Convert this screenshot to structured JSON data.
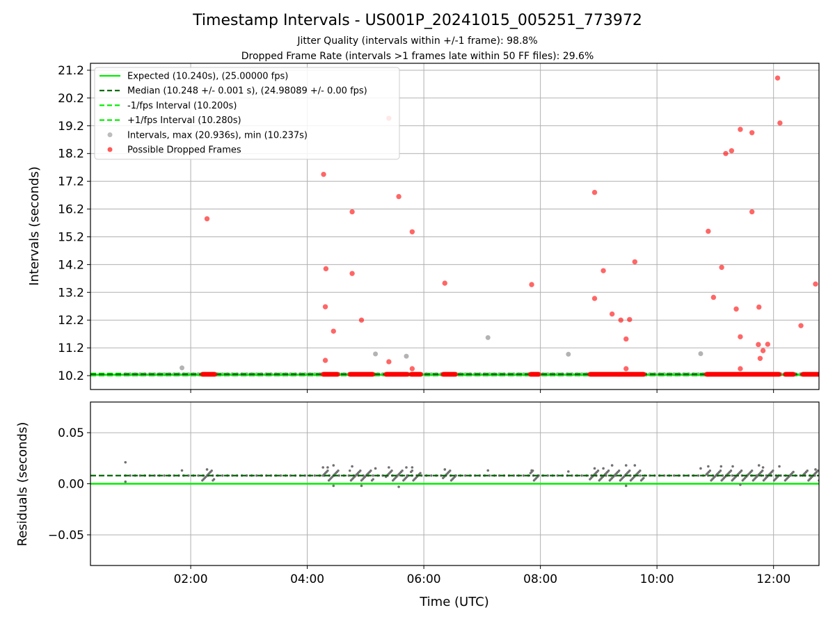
{
  "figure": {
    "title": "Timestamp Intervals - US001P_20241015_005251_773972",
    "subtitle1": "Jitter Quality (intervals within +/-1 frame): 98.8%",
    "subtitle2": "Dropped Frame Rate (intervals >1 frames late within 50 FF files): 29.6%"
  },
  "colors": {
    "expected": "#00ee00",
    "median": "#006400",
    "fps_bounds": "#00ee00",
    "intervals": "#999999",
    "dropped": "#ff0000",
    "residuals": "#707070",
    "grid": "#b0b0b0"
  },
  "chart_data": [
    {
      "type": "scatter",
      "xlabel": "",
      "ylabel": "Intervals (seconds)",
      "x_unit": "hours UTC",
      "xlim": [
        0.28,
        12.78
      ],
      "ylim": [
        9.7,
        21.45
      ],
      "y_ticks": [
        10.2,
        11.2,
        12.2,
        13.2,
        14.2,
        15.2,
        16.2,
        17.2,
        18.2,
        19.2,
        20.2,
        21.2
      ],
      "grid": true,
      "legend_position": "top-left",
      "legend": [
        "Expected (10.240s), (25.00000 fps)",
        "Median (10.248 +/- 0.001 s), (24.98089 +/- 0.00 fps)",
        "-1/fps Interval (10.200s)",
        "+1/fps Interval (10.280s)",
        "Intervals, max (20.936s), min (10.237s)",
        "Possible Dropped Frames"
      ],
      "lines": {
        "expected": 10.24,
        "median": 10.248,
        "minus_fps": 10.2,
        "plus_fps": 10.28
      },
      "intervals_x_range": [
        0.88,
        12.78
      ],
      "intervals_baseline": 10.248,
      "interval_outliers": [
        [
          1.85,
          10.48
        ],
        [
          5.17,
          10.98
        ],
        [
          5.7,
          10.9
        ],
        [
          7.1,
          11.57
        ],
        [
          8.48,
          10.97
        ],
        [
          10.75,
          10.99
        ]
      ],
      "dropped_clusters": [
        [
          2.2,
          2.42
        ],
        [
          4.27,
          4.53
        ],
        [
          4.73,
          5.13
        ],
        [
          5.35,
          5.73
        ],
        [
          5.78,
          5.95
        ],
        [
          6.33,
          6.55
        ],
        [
          7.83,
          7.98
        ],
        [
          8.85,
          9.78
        ],
        [
          10.85,
          12.1
        ],
        [
          12.2,
          12.35
        ],
        [
          12.5,
          12.78
        ]
      ],
      "dropped_points": [
        [
          2.28,
          15.85
        ],
        [
          4.28,
          17.45
        ],
        [
          4.32,
          14.05
        ],
        [
          4.31,
          12.68
        ],
        [
          4.31,
          10.75
        ],
        [
          4.45,
          11.8
        ],
        [
          4.77,
          16.1
        ],
        [
          4.77,
          13.88
        ],
        [
          4.93,
          12.2
        ],
        [
          5.4,
          19.47
        ],
        [
          5.4,
          10.7
        ],
        [
          5.57,
          16.65
        ],
        [
          5.8,
          15.38
        ],
        [
          5.8,
          10.45
        ],
        [
          6.36,
          13.53
        ],
        [
          7.85,
          13.48
        ],
        [
          8.93,
          16.8
        ],
        [
          8.93,
          12.98
        ],
        [
          9.08,
          13.98
        ],
        [
          9.23,
          12.42
        ],
        [
          9.38,
          12.2
        ],
        [
          9.47,
          11.52
        ],
        [
          9.47,
          10.45
        ],
        [
          9.53,
          12.22
        ],
        [
          9.62,
          14.3
        ],
        [
          10.88,
          15.4
        ],
        [
          10.97,
          13.02
        ],
        [
          11.11,
          14.1
        ],
        [
          11.18,
          18.2
        ],
        [
          11.28,
          18.3
        ],
        [
          11.36,
          12.6
        ],
        [
          11.43,
          19.07
        ],
        [
          11.43,
          11.6
        ],
        [
          11.43,
          10.45
        ],
        [
          11.63,
          18.95
        ],
        [
          11.63,
          16.1
        ],
        [
          11.75,
          12.67
        ],
        [
          11.74,
          11.32
        ],
        [
          11.77,
          10.82
        ],
        [
          11.82,
          11.1
        ],
        [
          11.9,
          11.33
        ],
        [
          12.07,
          20.92
        ],
        [
          12.11,
          19.3
        ],
        [
          12.47,
          12.0
        ],
        [
          12.72,
          13.5
        ]
      ]
    },
    {
      "type": "scatter",
      "xlabel": "Time (UTC)",
      "ylabel": "Residuals (seconds)",
      "x_ticks": [
        "02:00",
        "04:00",
        "06:00",
        "08:00",
        "10:00",
        "12:00"
      ],
      "x_tick_values": [
        2,
        4,
        6,
        8,
        10,
        12
      ],
      "y_ticks": [
        "0.05",
        "0.00",
        "−0.05"
      ],
      "y_tick_values": [
        0.05,
        0.0,
        -0.05
      ],
      "ylim": [
        -0.08,
        0.08
      ],
      "grid": true,
      "expected_residual": 0.0,
      "median_residual": 0.008,
      "residual_outliers": [
        [
          0.88,
          0.021
        ],
        [
          0.88,
          0.002
        ],
        [
          1.85,
          0.013
        ],
        [
          2.28,
          0.014
        ],
        [
          4.27,
          0.016
        ],
        [
          4.35,
          0.016
        ],
        [
          4.45,
          0.018
        ],
        [
          4.45,
          -0.002
        ],
        [
          4.77,
          0.017
        ],
        [
          4.93,
          -0.002
        ],
        [
          5.17,
          0.015
        ],
        [
          5.4,
          0.016
        ],
        [
          5.57,
          -0.003
        ],
        [
          5.7,
          0.016
        ],
        [
          5.8,
          0.016
        ],
        [
          6.36,
          0.014
        ],
        [
          7.1,
          0.013
        ],
        [
          7.85,
          0.013
        ],
        [
          8.48,
          0.012
        ],
        [
          8.93,
          0.015
        ],
        [
          9.08,
          0.015
        ],
        [
          9.23,
          0.018
        ],
        [
          9.47,
          0.018
        ],
        [
          9.62,
          0.018
        ],
        [
          9.47,
          -0.002
        ],
        [
          10.75,
          0.015
        ],
        [
          10.88,
          0.017
        ],
        [
          11.1,
          0.017
        ],
        [
          11.3,
          0.017
        ],
        [
          11.43,
          -0.001
        ],
        [
          11.75,
          0.018
        ],
        [
          11.82,
          0.016
        ],
        [
          12.1,
          0.017
        ],
        [
          12.72,
          0.014
        ]
      ]
    }
  ]
}
